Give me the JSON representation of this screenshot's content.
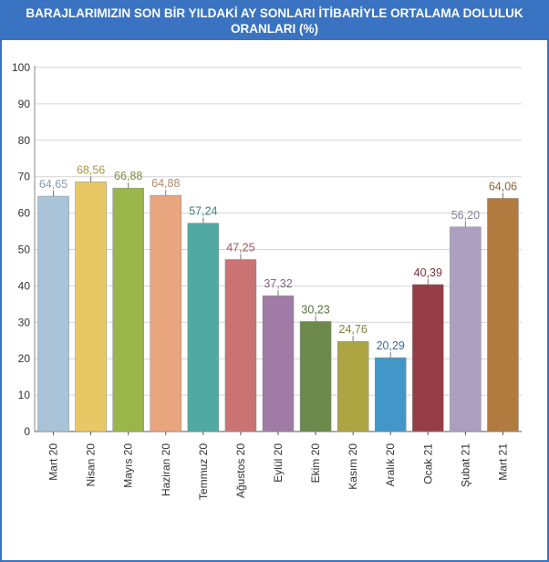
{
  "title": "BARAJLARIMIZIN SON BİR YILDAKİ AY SONLARI İTİBARİYLE ORTALAMA DOLULUK ORANLARI (%)",
  "chart_data": {
    "type": "bar",
    "title": "BARAJLARIMIZIN SON BİR YILDAKİ AY SONLARI İTİBARİYLE ORTALAMA DOLULUK ORANLARI (%)",
    "xlabel": "",
    "ylabel": "",
    "ylim": [
      0,
      100
    ],
    "yticks": [
      0,
      10,
      20,
      30,
      40,
      50,
      60,
      70,
      80,
      90,
      100
    ],
    "grid": true,
    "categories": [
      "Mart 20",
      "Nisan 20",
      "Mayıs 20",
      "Haziran 20",
      "Temmuz 20",
      "Ağustos 20",
      "Eylül 20",
      "Ekim 20",
      "Kasım 20",
      "Aralık 20",
      "Ocak 21",
      "Şubat 21",
      "Mart 21"
    ],
    "values": [
      64.65,
      68.56,
      66.88,
      64.88,
      57.24,
      47.25,
      37.32,
      30.23,
      24.76,
      20.29,
      40.39,
      56.2,
      64.06
    ],
    "value_labels": [
      "64,65",
      "68,56",
      "66,88",
      "64,88",
      "57,24",
      "47,25",
      "37,32",
      "30,23",
      "24,76",
      "20,29",
      "40,39",
      "56,20",
      "64,06"
    ],
    "colors": [
      "#a9c3d8",
      "#e8c865",
      "#9ab54a",
      "#e8a57e",
      "#52a9a3",
      "#cb7272",
      "#a07ba6",
      "#6b8a4c",
      "#aca542",
      "#4396c8",
      "#973d47",
      "#ac9fbf",
      "#b17b40"
    ],
    "label_colors": [
      "#8a9aa8",
      "#a89a48",
      "#7f8e40",
      "#b08a6c",
      "#3f7f7a",
      "#9b5858",
      "#7f6585",
      "#56703e",
      "#85813a",
      "#3a6f96",
      "#7a343c",
      "#8a8099",
      "#8a6238"
    ]
  }
}
